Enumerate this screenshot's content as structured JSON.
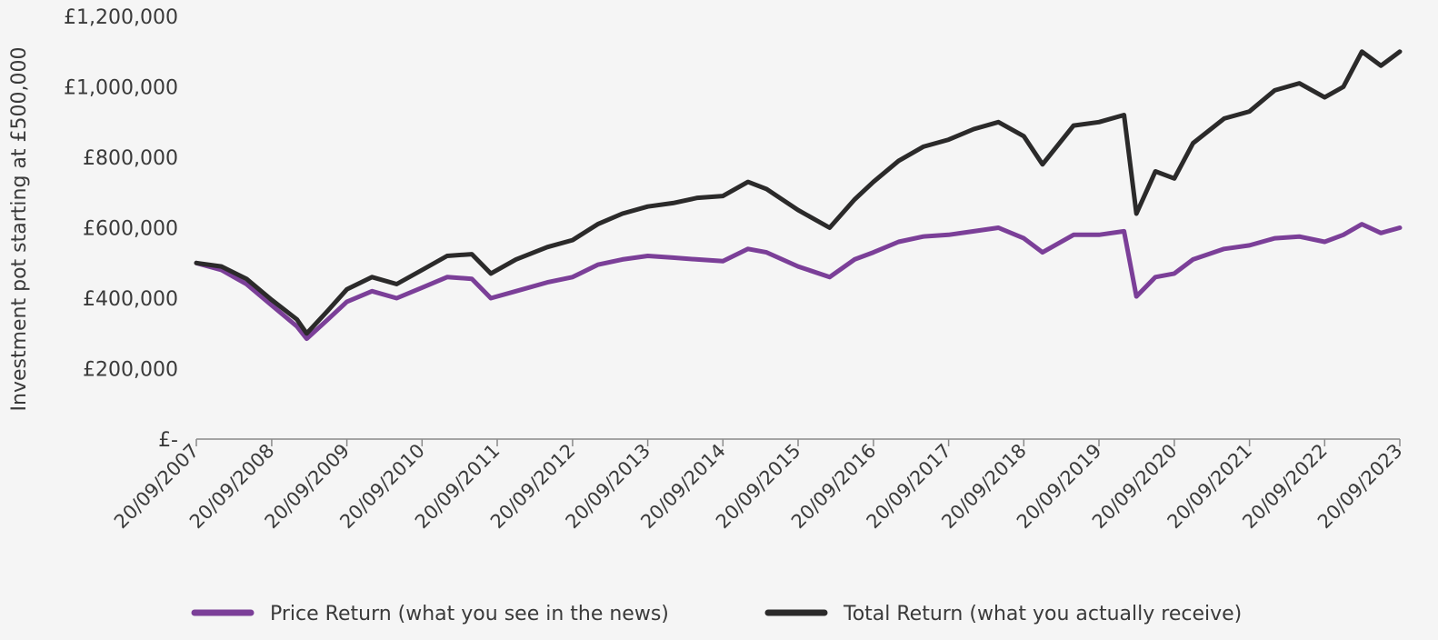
{
  "chart_data": {
    "type": "line",
    "title": "",
    "xlabel": "",
    "ylabel": "Investment pot starting at £500,000",
    "ylim": [
      0,
      1200000
    ],
    "yticks": [
      {
        "value": 0,
        "label": "£-"
      },
      {
        "value": 200000,
        "label": "£200,000"
      },
      {
        "value": 400000,
        "label": "£400,000"
      },
      {
        "value": 600000,
        "label": "£600,000"
      },
      {
        "value": 800000,
        "label": "£800,000"
      },
      {
        "value": 1000000,
        "label": "£1,000,000"
      },
      {
        "value": 1200000,
        "label": "£1,200,000"
      }
    ],
    "xlim": [
      "2007-09-20",
      "2023-09-20"
    ],
    "xticks": [
      "20/09/2007",
      "20/09/2008",
      "20/09/2009",
      "20/09/2010",
      "20/09/2011",
      "20/09/2012",
      "20/09/2013",
      "20/09/2014",
      "20/09/2015",
      "20/09/2016",
      "20/09/2017",
      "20/09/2018",
      "20/09/2019",
      "20/09/2020",
      "20/09/2021",
      "20/09/2022",
      "20/09/2023"
    ],
    "grid": false,
    "legend_position": "bottom",
    "series": [
      {
        "name": "Price Return (what you see in the news)",
        "color": "#7b3f98",
        "x": [
          "2007-09-20",
          "2008-01-20",
          "2008-05-20",
          "2008-09-20",
          "2009-01-20",
          "2009-03-09",
          "2009-06-20",
          "2009-09-20",
          "2010-01-20",
          "2010-05-20",
          "2010-09-20",
          "2011-01-20",
          "2011-05-20",
          "2011-08-20",
          "2011-12-20",
          "2012-05-20",
          "2012-09-20",
          "2013-01-20",
          "2013-05-20",
          "2013-09-20",
          "2014-01-20",
          "2014-05-20",
          "2014-09-20",
          "2015-01-20",
          "2015-04-20",
          "2015-09-20",
          "2016-02-20",
          "2016-06-20",
          "2016-09-20",
          "2017-01-20",
          "2017-05-20",
          "2017-09-20",
          "2018-01-20",
          "2018-05-20",
          "2018-09-20",
          "2018-12-20",
          "2019-05-20",
          "2019-09-20",
          "2020-01-20",
          "2020-03-20",
          "2020-06-20",
          "2020-09-20",
          "2020-12-20",
          "2021-05-20",
          "2021-09-20",
          "2022-01-20",
          "2022-05-20",
          "2022-09-20",
          "2022-12-20",
          "2023-03-20",
          "2023-06-20",
          "2023-09-20"
        ],
        "values": [
          500000,
          480000,
          440000,
          380000,
          320000,
          285000,
          340000,
          390000,
          420000,
          400000,
          430000,
          460000,
          455000,
          400000,
          420000,
          445000,
          460000,
          495000,
          510000,
          520000,
          515000,
          510000,
          505000,
          540000,
          530000,
          490000,
          460000,
          510000,
          530000,
          560000,
          575000,
          580000,
          590000,
          600000,
          570000,
          530000,
          580000,
          580000,
          590000,
          405000,
          460000,
          470000,
          510000,
          540000,
          550000,
          570000,
          575000,
          560000,
          580000,
          610000,
          585000,
          600000
        ]
      },
      {
        "name": "Total Return (what you actually receive)",
        "color": "#2b2a2a",
        "x": [
          "2007-09-20",
          "2008-01-20",
          "2008-05-20",
          "2008-09-20",
          "2009-01-20",
          "2009-03-09",
          "2009-06-20",
          "2009-09-20",
          "2010-01-20",
          "2010-05-20",
          "2010-09-20",
          "2011-01-20",
          "2011-05-20",
          "2011-08-20",
          "2011-12-20",
          "2012-05-20",
          "2012-09-20",
          "2013-01-20",
          "2013-05-20",
          "2013-09-20",
          "2014-01-20",
          "2014-05-20",
          "2014-09-20",
          "2015-01-20",
          "2015-04-20",
          "2015-09-20",
          "2016-02-20",
          "2016-06-20",
          "2016-09-20",
          "2017-01-20",
          "2017-05-20",
          "2017-09-20",
          "2018-01-20",
          "2018-05-20",
          "2018-09-20",
          "2018-12-20",
          "2019-05-20",
          "2019-09-20",
          "2020-01-20",
          "2020-03-20",
          "2020-06-20",
          "2020-09-20",
          "2020-12-20",
          "2021-05-20",
          "2021-09-20",
          "2022-01-20",
          "2022-05-20",
          "2022-09-20",
          "2022-12-20",
          "2023-03-20",
          "2023-06-20",
          "2023-09-20"
        ],
        "values": [
          500000,
          490000,
          455000,
          395000,
          340000,
          300000,
          365000,
          425000,
          460000,
          440000,
          480000,
          520000,
          525000,
          470000,
          510000,
          545000,
          565000,
          610000,
          640000,
          660000,
          670000,
          685000,
          690000,
          730000,
          710000,
          650000,
          600000,
          680000,
          730000,
          790000,
          830000,
          850000,
          880000,
          900000,
          860000,
          780000,
          890000,
          900000,
          920000,
          640000,
          760000,
          740000,
          840000,
          910000,
          930000,
          990000,
          1010000,
          970000,
          1000000,
          1100000,
          1060000,
          1100000
        ]
      }
    ]
  }
}
